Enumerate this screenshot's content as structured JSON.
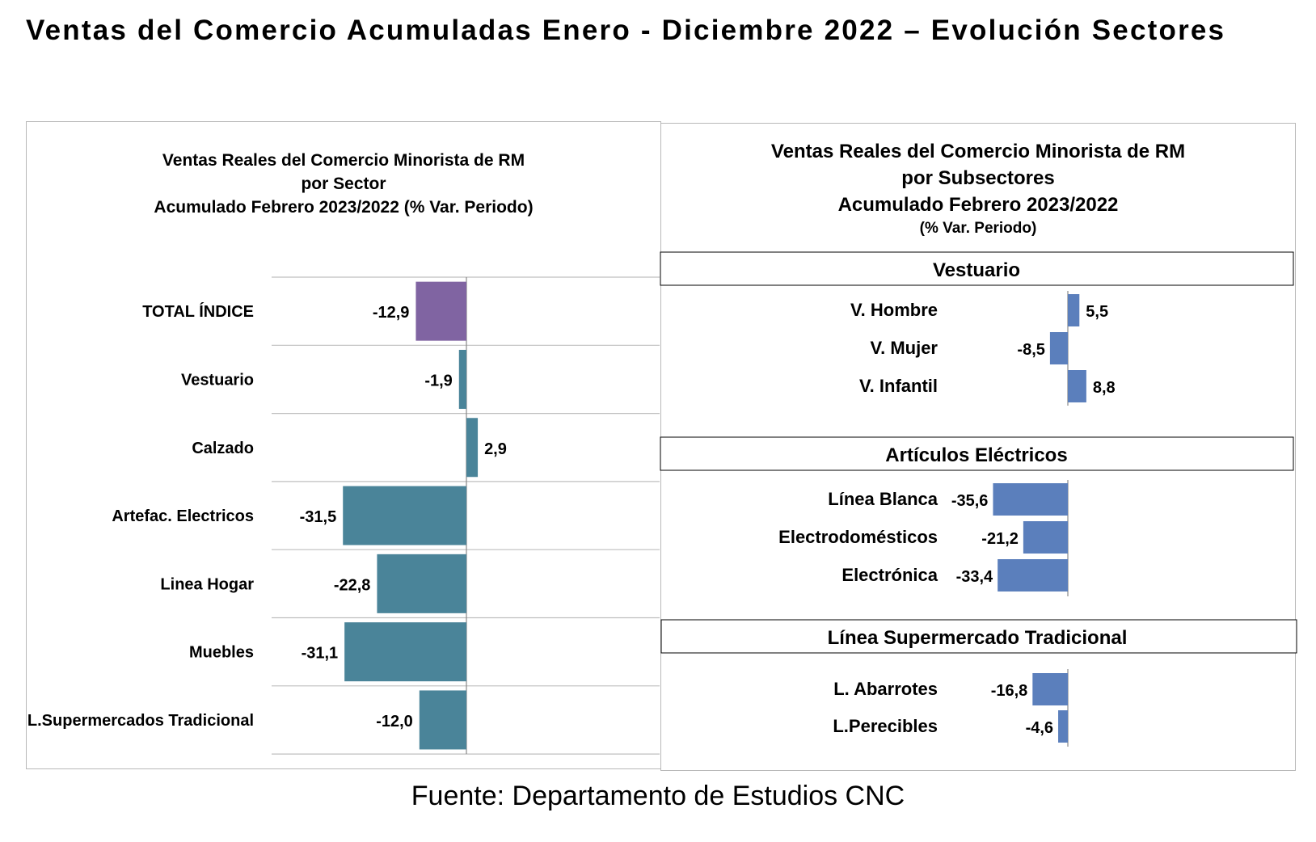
{
  "title": "Ventas del Comercio Acumuladas Enero - Diciembre 2022 – Evolución Sectores",
  "source": "Fuente: Departamento de Estudios CNC",
  "left_panel": {
    "title_lines": [
      "Ventas Reales del Comercio Minorista de RM",
      "por Sector",
      "Acumulado Febrero 2023/2022 (% Var. Periodo)"
    ]
  },
  "right_panel": {
    "title_lines": [
      "Ventas Reales del Comercio Minorista de RM",
      "por Subsectores",
      "Acumulado Febrero 2023/2022"
    ],
    "title_sub": "(% Var. Periodo)"
  },
  "colors": {
    "total": "#8064a2",
    "sector": "#4a8499",
    "subsector": "#5b7fbc",
    "grid": "#bfbfbf",
    "axis": "#888888"
  },
  "chart_data": [
    {
      "type": "bar",
      "orientation": "horizontal",
      "categories": [
        "TOTAL ÍNDICE",
        "Vestuario",
        "Calzado",
        "Artefac. Electricos",
        "Linea Hogar",
        "Muebles",
        "L.Supermercados Tradicional"
      ],
      "values": [
        -12.9,
        -1.9,
        2.9,
        -31.5,
        -22.8,
        -31.1,
        -12.0
      ],
      "labels": [
        "-12,9",
        "-1,9",
        "2,9",
        "-31,5",
        "-22,8",
        "-31,1",
        "-12,0"
      ],
      "highlight_index": 0,
      "grid": true
    },
    {
      "type": "bar",
      "orientation": "horizontal",
      "groups": [
        {
          "name": "Vestuario",
          "categories": [
            "V. Hombre",
            "V. Mujer",
            "V. Infantil"
          ],
          "values": [
            5.5,
            -8.5,
            8.8
          ],
          "labels": [
            "5,5",
            "-8,5",
            "8,8"
          ]
        },
        {
          "name": "Artículos Eléctricos",
          "categories": [
            "Línea Blanca",
            "Electrodomésticos",
            "Electrónica"
          ],
          "values": [
            -35.6,
            -21.2,
            -33.4
          ],
          "labels": [
            "-35,6",
            "-21,2",
            "-33,4"
          ]
        },
        {
          "name": "Línea  Supermercado Tradicional",
          "categories": [
            "L. Abarrotes",
            "L.Perecibles"
          ],
          "values": [
            -16.8,
            -4.6
          ],
          "labels": [
            "-16,8",
            "-4,6"
          ]
        }
      ],
      "grid": false
    }
  ]
}
